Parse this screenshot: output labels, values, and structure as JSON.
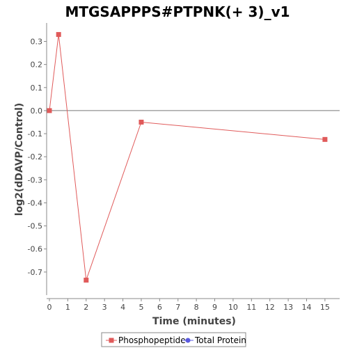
{
  "chart_data": {
    "type": "line",
    "title": "MTGSAPPPS#PTPNK(+ 3)_v1",
    "xlabel": "Time (minutes)",
    "ylabel": "log2(dDAVP/Control)",
    "xlim": [
      0,
      15.8
    ],
    "ylim": [
      -0.8,
      0.38
    ],
    "xticks": [
      0,
      1,
      2,
      3,
      4,
      5,
      6,
      7,
      8,
      9,
      10,
      11,
      12,
      13,
      14,
      15
    ],
    "xtick_labels": [
      "0",
      "1",
      "2",
      "3",
      "4",
      "5",
      "6",
      "7",
      "8",
      "9",
      "10",
      "11",
      "12",
      "13",
      "14",
      "15"
    ],
    "yticks": [
      0.3,
      0.2,
      0.1,
      0.0,
      -0.1,
      -0.2,
      -0.3,
      -0.4,
      -0.5,
      -0.6,
      -0.7
    ],
    "ytick_labels": [
      "0.3",
      "0.2",
      "0.1",
      "0.0",
      "-0.1",
      "-0.2",
      "-0.3",
      "-0.4",
      "-0.5",
      "-0.6",
      "-0.7"
    ],
    "zero_line": true,
    "grid": false,
    "legend_position": "bottom-center",
    "series": [
      {
        "name": "Phosphopeptide",
        "color": "#e05a5a",
        "marker": "square",
        "x": [
          0,
          0.5,
          2,
          5,
          15
        ],
        "y": [
          0.0,
          0.33,
          -0.735,
          -0.05,
          -0.125
        ]
      },
      {
        "name": "Total Protein",
        "color": "#5a5ae0",
        "marker": "circle",
        "x": [],
        "y": []
      }
    ]
  }
}
